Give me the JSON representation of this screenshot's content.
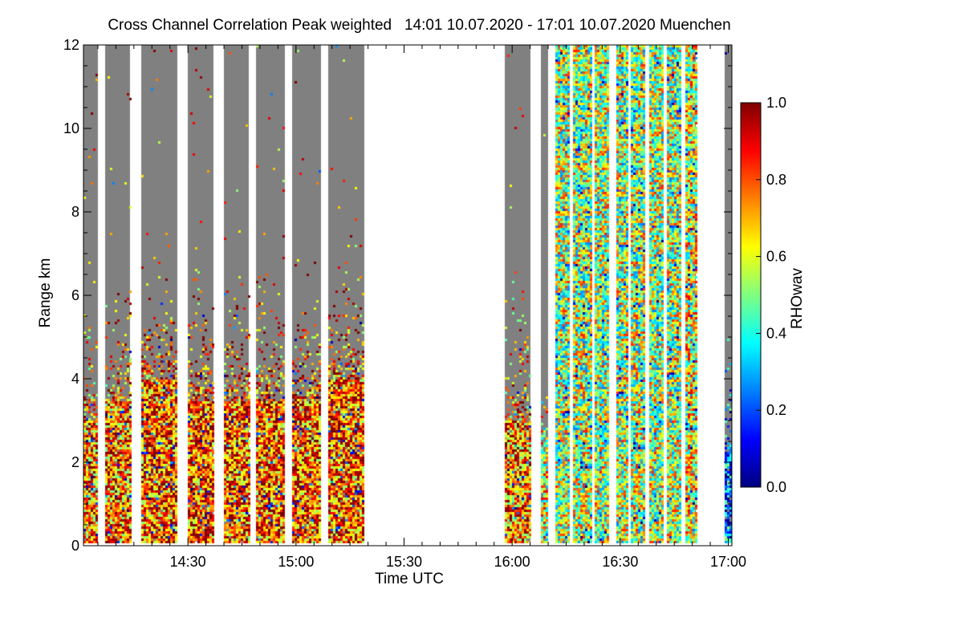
{
  "chart_data": {
    "type": "heatmap",
    "title": "Cross Channel Correlation Peak weighted   14:01 10.07.2020 - 17:01 10.07.2020 Muenchen",
    "xlabel": "Time UTC",
    "ylabel": "Range km",
    "x_range": [
      "14:01",
      "17:01"
    ],
    "y_range": [
      0,
      12
    ],
    "x_ticks": [
      "14:30",
      "15:00",
      "15:30",
      "16:00",
      "16:30",
      "17:00"
    ],
    "y_ticks": [
      "0",
      "2",
      "4",
      "6",
      "8",
      "10",
      "12"
    ],
    "colorbar": {
      "label": "RHOwav",
      "range": [
        0.0,
        1.0
      ],
      "ticks": [
        "0.0",
        "0.2",
        "0.4",
        "0.6",
        "0.8",
        "1.0"
      ],
      "colormap": [
        "#00007f",
        "#0000ff",
        "#0080ff",
        "#00ffff",
        "#80ff80",
        "#ffff00",
        "#ff8000",
        "#ff0000",
        "#7f0000"
      ]
    },
    "no_signal_color": "#808080",
    "scans": [
      {
        "start": "14:01",
        "end": "14:05",
        "signal_top_km": 3.0,
        "mean_rhowav": 0.75
      },
      {
        "start": "14:07",
        "end": "14:14",
        "signal_top_km": 3.5,
        "mean_rhowav": 0.75
      },
      {
        "start": "14:17",
        "end": "14:27",
        "signal_top_km": 4.0,
        "mean_rhowav": 0.8
      },
      {
        "start": "14:30",
        "end": "14:37",
        "signal_top_km": 3.5,
        "mean_rhowav": 0.8
      },
      {
        "start": "14:40",
        "end": "14:47",
        "signal_top_km": 3.5,
        "mean_rhowav": 0.8
      },
      {
        "start": "14:49",
        "end": "14:57",
        "signal_top_km": 3.5,
        "mean_rhowav": 0.8
      },
      {
        "start": "14:59",
        "end": "15:07",
        "signal_top_km": 3.5,
        "mean_rhowav": 0.8
      },
      {
        "start": "15:09",
        "end": "15:19",
        "signal_top_km": 4.0,
        "mean_rhowav": 0.8
      },
      {
        "start": "15:58",
        "end": "16:05",
        "signal_top_km": 3.0,
        "mean_rhowav": 0.75
      },
      {
        "start": "16:08",
        "end": "16:10",
        "signal_top_km": 2.0,
        "mean_rhowav": 0.6
      },
      {
        "start": "16:12",
        "end": "16:16",
        "signal_top_km": 12.0,
        "mean_rhowav": 0.55
      },
      {
        "start": "16:17",
        "end": "16:22",
        "signal_top_km": 12.0,
        "mean_rhowav": 0.55
      },
      {
        "start": "16:23",
        "end": "16:27",
        "signal_top_km": 12.0,
        "mean_rhowav": 0.55
      },
      {
        "start": "16:29",
        "end": "16:32",
        "signal_top_km": 12.0,
        "mean_rhowav": 0.55
      },
      {
        "start": "16:33",
        "end": "16:37",
        "signal_top_km": 12.0,
        "mean_rhowav": 0.55
      },
      {
        "start": "16:38",
        "end": "16:42",
        "signal_top_km": 12.0,
        "mean_rhowav": 0.55
      },
      {
        "start": "16:43",
        "end": "16:47",
        "signal_top_km": 12.0,
        "mean_rhowav": 0.55
      },
      {
        "start": "16:48",
        "end": "16:51",
        "signal_top_km": 12.0,
        "mean_rhowav": 0.6
      },
      {
        "start": "16:59",
        "end": "17:01",
        "signal_top_km": 2.3,
        "mean_rhowav": 0.25
      }
    ]
  }
}
